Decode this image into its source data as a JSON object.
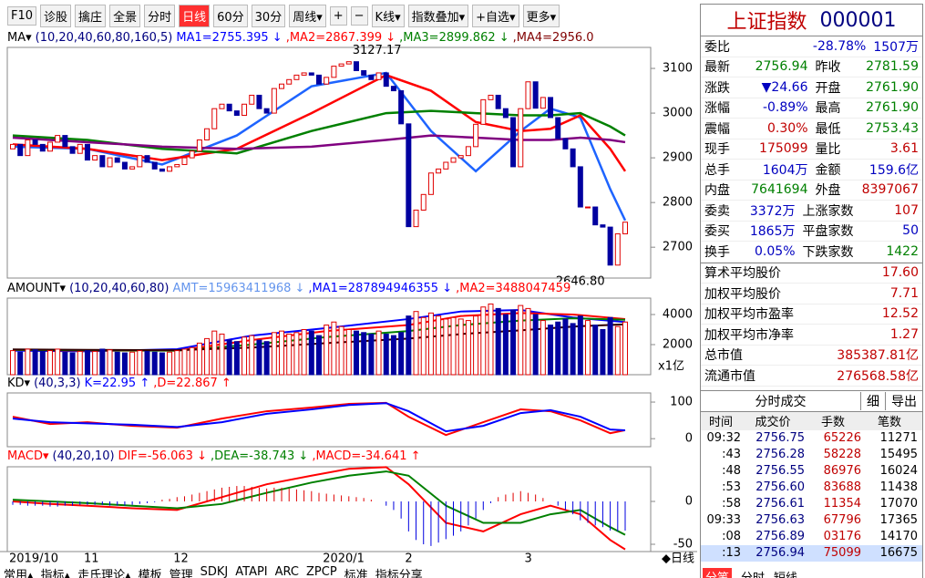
{
  "toolbar": [
    "F10",
    "诊股",
    "擒庄",
    "全景",
    "分时",
    "日线",
    "60分",
    "30分",
    "周线▾",
    "+",
    "−",
    "K线▾",
    "指数叠加▾",
    "+自选▾",
    "更多▾"
  ],
  "price_panel": {
    "legend": [
      {
        "text": "MA▾",
        "color": "#000000"
      },
      {
        "text": "(10,20,40,60,80,160,5)",
        "color": "#000080"
      },
      {
        "text": "MA1=2755.395 ↓",
        "color": "#0000ff"
      },
      {
        "text": ",MA2=2867.399 ↓",
        "color": "#ff0000"
      },
      {
        "text": ",MA3=2899.862 ↓",
        "color": "#008000"
      },
      {
        "text": ",MA4=2956.0",
        "color": "#800000"
      }
    ],
    "ylim": [
      2631,
      3147
    ],
    "yticks": [
      2700,
      2800,
      2900,
      3000,
      3100
    ],
    "high_label": "3127.17",
    "low_label": "2646.80",
    "first_open": 2920,
    "closes": [
      2930,
      2905,
      2940,
      2930,
      2915,
      2935,
      2950,
      2925,
      2910,
      2930,
      2895,
      2905,
      2880,
      2900,
      2890,
      2875,
      2880,
      2905,
      2890,
      2875,
      2870,
      2880,
      2885,
      2900,
      2915,
      2940,
      2965,
      3010,
      3020,
      3005,
      2995,
      3020,
      3040,
      3010,
      3000,
      3055,
      3065,
      3075,
      3085,
      3090,
      3085,
      3065,
      3080,
      3105,
      3110,
      3115,
      3095,
      3085,
      3075,
      3090,
      3060,
      3050,
      2976,
      2746,
      2783,
      2818,
      2866,
      2875,
      2890,
      2900,
      2905,
      2925,
      2975,
      3030,
      3040,
      3010,
      2990,
      2880,
      3010,
      3070,
      3011,
      3035,
      2990,
      2943,
      2920,
      2880,
      2790,
      2790,
      2750,
      2745,
      2660,
      2730,
      2756
    ],
    "lines": {
      "x": [
        0,
        10,
        20,
        30,
        40,
        50,
        56,
        62,
        68,
        72,
        76,
        80,
        82
      ],
      "series": [
        {
          "color": "#1e64ff",
          "values": [
            2925,
            2920,
            2885,
            2950,
            3060,
            3090,
            2960,
            2870,
            2960,
            3010,
            2990,
            2830,
            2760
          ]
        },
        {
          "color": "#ff0000",
          "values": [
            2930,
            2920,
            2895,
            2920,
            3000,
            3085,
            3050,
            2980,
            2960,
            2965,
            2995,
            2920,
            2870
          ]
        },
        {
          "color": "#008000",
          "values": [
            2950,
            2940,
            2920,
            2910,
            2960,
            3000,
            3005,
            3000,
            2995,
            2995,
            3000,
            2970,
            2950
          ]
        },
        {
          "color": "#800080",
          "values": [
            2945,
            2935,
            2925,
            2920,
            2925,
            2940,
            2950,
            2945,
            2940,
            2940,
            2945,
            2940,
            2935
          ]
        }
      ]
    }
  },
  "amount_panel": {
    "legend": [
      {
        "text": "AMOUNT▾",
        "color": "#000000"
      },
      {
        "text": "(10,20,40,60,80)",
        "color": "#000080"
      },
      {
        "text": "AMT=15963411968 ↓",
        "color": "#6495ed"
      },
      {
        "text": ",MA1=287894946355 ↓",
        "color": "#0000ff"
      },
      {
        "text": ",MA2=3488047459",
        "color": "#ff0000"
      }
    ],
    "ylim": [
      0,
      5090
    ],
    "yticks": [
      2000,
      4000
    ],
    "unit": "x1亿",
    "values": [
      1600,
      1500,
      1700,
      1650,
      1550,
      1600,
      1700,
      1500,
      1450,
      1550,
      1600,
      1550,
      1700,
      1650,
      1500,
      1450,
      1500,
      1600,
      1550,
      1500,
      1450,
      1500,
      1600,
      1700,
      1800,
      2100,
      2400,
      2900,
      2700,
      2300,
      2200,
      2500,
      2600,
      2300,
      2200,
      2800,
      2900,
      2700,
      2800,
      3000,
      2900,
      2600,
      3300,
      3500,
      3200,
      3000,
      2900,
      2800,
      2700,
      2900,
      2700,
      2600,
      2800,
      3900,
      4200,
      3800,
      4100,
      3900,
      3700,
      3800,
      3700,
      3600,
      3900,
      4500,
      4700,
      4400,
      4000,
      4300,
      4600,
      4400,
      4000,
      3600,
      3300,
      3500,
      3700,
      3400,
      3900,
      3600,
      3300,
      3000,
      3800,
      3200,
      3500
    ],
    "lines": {
      "x": [
        0,
        10,
        22,
        32,
        42,
        53,
        60,
        68,
        75,
        82
      ],
      "series": [
        {
          "color": "#0000ff",
          "values": [
            1600,
            1550,
            1700,
            2600,
            3100,
            3700,
            4200,
            4300,
            3800,
            3500
          ]
        },
        {
          "color": "#ff0000",
          "values": [
            1650,
            1600,
            1600,
            2300,
            2900,
            3300,
            3900,
            4100,
            4000,
            3700
          ]
        },
        {
          "color": "#008000",
          "values": [
            1650,
            1620,
            1600,
            2000,
            2500,
            2900,
            3300,
            3600,
            3750,
            3650
          ]
        },
        {
          "color": "#300000",
          "values": [
            1680,
            1650,
            1630,
            1800,
            2100,
            2400,
            2700,
            2950,
            3200,
            3350
          ]
        }
      ]
    }
  },
  "kd_panel": {
    "legend": [
      {
        "text": "KD▾",
        "color": "#000000"
      },
      {
        "text": "(40,3,3)",
        "color": "#000080"
      },
      {
        "text": "K=22.95 ↑",
        "color": "#0000ff"
      },
      {
        "text": ",D=22.867 ↑",
        "color": "#ff0000"
      }
    ],
    "ylim": [
      -22,
      125
    ],
    "yticks": [
      0,
      100
    ],
    "lines": {
      "x": [
        0,
        5,
        10,
        16,
        22,
        28,
        34,
        40,
        45,
        50,
        53,
        58,
        63,
        68,
        72,
        76,
        80,
        82
      ],
      "series": [
        {
          "color": "#ff0000",
          "values": [
            60,
            40,
            45,
            35,
            30,
            55,
            75,
            85,
            95,
            98,
            60,
            10,
            45,
            80,
            75,
            50,
            15,
            23
          ]
        },
        {
          "color": "#0000ff",
          "values": [
            55,
            45,
            42,
            38,
            32,
            45,
            68,
            80,
            92,
            97,
            75,
            20,
            35,
            70,
            78,
            60,
            25,
            23
          ]
        }
      ]
    }
  },
  "macd_panel": {
    "legend": [
      {
        "text": "MACD▾",
        "color": "#ff0000"
      },
      {
        "text": "(40,20,10)",
        "color": "#000080"
      },
      {
        "text": "DIF=-56.063 ↓",
        "color": "#ff0000"
      },
      {
        "text": ",DEA=-38.743 ↓",
        "color": "#008000"
      },
      {
        "text": ",MACD=-34.641 ↑",
        "color": "#ff0000"
      }
    ],
    "ylim": [
      -58.5,
      40.4
    ],
    "yticks": [
      0,
      -50
    ],
    "values": [
      -4,
      -4,
      -5,
      -5,
      -5,
      -6,
      -6,
      -5,
      -5,
      -4,
      -4,
      -4,
      -4,
      -5,
      -5,
      -5,
      -4,
      -3,
      -2,
      -1,
      2,
      3,
      5,
      6,
      8,
      10,
      12,
      14,
      16,
      17,
      18,
      18,
      17,
      16,
      15,
      16,
      16,
      15,
      14,
      13,
      12,
      10,
      9,
      8,
      7,
      6,
      5,
      4,
      2,
      0,
      -5,
      -10,
      -20,
      -35,
      -45,
      -50,
      -52,
      -48,
      -44,
      -40,
      -35,
      -28,
      -20,
      -10,
      -2,
      5,
      8,
      10,
      12,
      10,
      8,
      4,
      0,
      -5,
      -10,
      -15,
      -22,
      -25,
      -28,
      -30,
      -34,
      -35,
      -34
    ],
    "lines": {
      "x": [
        0,
        5,
        10,
        16,
        22,
        28,
        34,
        40,
        45,
        50,
        53,
        58,
        63,
        68,
        72,
        76,
        80,
        82
      ],
      "series": [
        {
          "color": "#ff0000",
          "values": [
            0,
            -3,
            -5,
            -8,
            -10,
            5,
            20,
            30,
            38,
            40,
            20,
            -25,
            -35,
            -15,
            -5,
            -15,
            -45,
            -56
          ]
        },
        {
          "color": "#008000",
          "values": [
            2,
            0,
            -2,
            -5,
            -8,
            -3,
            10,
            22,
            30,
            35,
            30,
            -5,
            -25,
            -25,
            -15,
            -10,
            -30,
            -39
          ]
        }
      ]
    }
  },
  "dates": [
    "2019/10",
    null,
    null,
    null,
    null,
    null,
    null,
    null,
    null,
    null,
    "11",
    null,
    null,
    null,
    null,
    null,
    null,
    null,
    null,
    null,
    null,
    null,
    "12",
    null,
    null,
    null,
    null,
    null,
    null,
    null,
    null,
    null,
    null,
    null,
    null,
    null,
    null,
    null,
    null,
    null,
    null,
    null,
    "2020/1",
    null,
    null,
    null,
    null,
    null,
    null,
    null,
    null,
    null,
    null,
    "2",
    null,
    null,
    null,
    null,
    null,
    null,
    null,
    null,
    null,
    null,
    null,
    null,
    null,
    null,
    null,
    "3",
    null,
    null,
    null,
    null,
    null,
    null,
    null,
    null,
    null,
    null,
    null,
    null,
    null,
    null,
    null
  ],
  "period_label": "◆日线",
  "bottom_tabs": [
    "常用▴",
    "指标▴",
    "走氏理论▴",
    "模板",
    "管理",
    "SDKJ",
    "ATAPI",
    "ARC",
    "ZPCP",
    "标准",
    "指标分享"
  ],
  "quote": {
    "name": "上证指数",
    "code": "000001",
    "rows": [
      [
        {
          "t": "委比",
          "c": "#000000"
        },
        {
          "t": "-28.78%",
          "c": "#0000c0"
        },
        {
          "t": "1507万",
          "c": "#0000c0"
        }
      ],
      [
        {
          "t": "最新",
          "c": "#000000"
        },
        {
          "t": "2756.94",
          "c": "#008000"
        },
        {
          "t": "昨收",
          "c": "#000000"
        },
        {
          "t": "2781.59",
          "c": "#008000"
        }
      ],
      [
        {
          "t": "涨跌",
          "c": "#000000"
        },
        {
          "t": "▼24.66",
          "c": "#0000c0"
        },
        {
          "t": "开盘",
          "c": "#000000"
        },
        {
          "t": "2761.90",
          "c": "#008000"
        }
      ],
      [
        {
          "t": "涨幅",
          "c": "#000000"
        },
        {
          "t": "-0.89%",
          "c": "#0000c0"
        },
        {
          "t": "最高",
          "c": "#000000"
        },
        {
          "t": "2761.90",
          "c": "#008000"
        }
      ],
      [
        {
          "t": "震幅",
          "c": "#000000"
        },
        {
          "t": "0.30%",
          "c": "#c00000"
        },
        {
          "t": "最低",
          "c": "#000000"
        },
        {
          "t": "2753.43",
          "c": "#008000"
        }
      ],
      [
        {
          "t": "现手",
          "c": "#000000"
        },
        {
          "t": "175099",
          "c": "#c00000"
        },
        {
          "t": "量比",
          "c": "#000000"
        },
        {
          "t": "3.61",
          "c": "#c00000"
        }
      ],
      [
        {
          "t": "总手",
          "c": "#000000"
        },
        {
          "t": "1604万",
          "c": "#0000c0"
        },
        {
          "t": "金额",
          "c": "#000000"
        },
        {
          "t": "159.6亿",
          "c": "#0000c0"
        }
      ],
      [
        {
          "t": "内盘",
          "c": "#000000"
        },
        {
          "t": "7641694",
          "c": "#008000"
        },
        {
          "t": "外盘",
          "c": "#000000"
        },
        {
          "t": "8397067",
          "c": "#c00000"
        }
      ],
      [
        {
          "t": "委卖",
          "c": "#000000"
        },
        {
          "t": "3372万",
          "c": "#0000c0"
        },
        {
          "t": "上涨家数",
          "c": "#000000"
        },
        {
          "t": "107",
          "c": "#c00000"
        }
      ],
      [
        {
          "t": "委买",
          "c": "#000000"
        },
        {
          "t": "1865万",
          "c": "#0000c0"
        },
        {
          "t": "平盘家数",
          "c": "#000000"
        },
        {
          "t": "50",
          "c": "#0000c0"
        }
      ],
      [
        {
          "t": "换手",
          "c": "#000000"
        },
        {
          "t": "0.05%",
          "c": "#0000c0"
        },
        {
          "t": "下跌家数",
          "c": "#000000"
        },
        {
          "t": "1422",
          "c": "#008000"
        }
      ]
    ],
    "stats": [
      [
        "算术平均股价",
        "17.60"
      ],
      [
        "加权平均股价",
        "7.71"
      ],
      [
        "加权平均市盈率",
        "12.52"
      ],
      [
        "加权平均市净率",
        "1.27"
      ],
      [
        "总市值",
        "385387.81亿"
      ],
      [
        "流通市值",
        "276568.58亿"
      ]
    ]
  },
  "trades": {
    "tabs": [
      "分时成交",
      "细",
      "导出"
    ],
    "header": [
      "时间",
      "成交价",
      "手数",
      "笔数"
    ],
    "rows": [
      [
        "09:32",
        "2756.75",
        "65226",
        "11271"
      ],
      [
        ":43",
        "2756.28",
        "58228",
        "15495"
      ],
      [
        ":48",
        "2756.55",
        "86976",
        "16024"
      ],
      [
        ":53",
        "2756.60",
        "83688",
        "11438"
      ],
      [
        ":58",
        "2756.61",
        "11354",
        "17070"
      ],
      [
        "09:33",
        "2756.63",
        "67796",
        "17365"
      ],
      [
        ":08",
        "2756.89",
        "03176",
        "14170"
      ],
      [
        ":13",
        "2756.94",
        "75099",
        "16675"
      ]
    ]
  },
  "right_bottom_tabs": [
    "分笔",
    "分时",
    "短线"
  ]
}
